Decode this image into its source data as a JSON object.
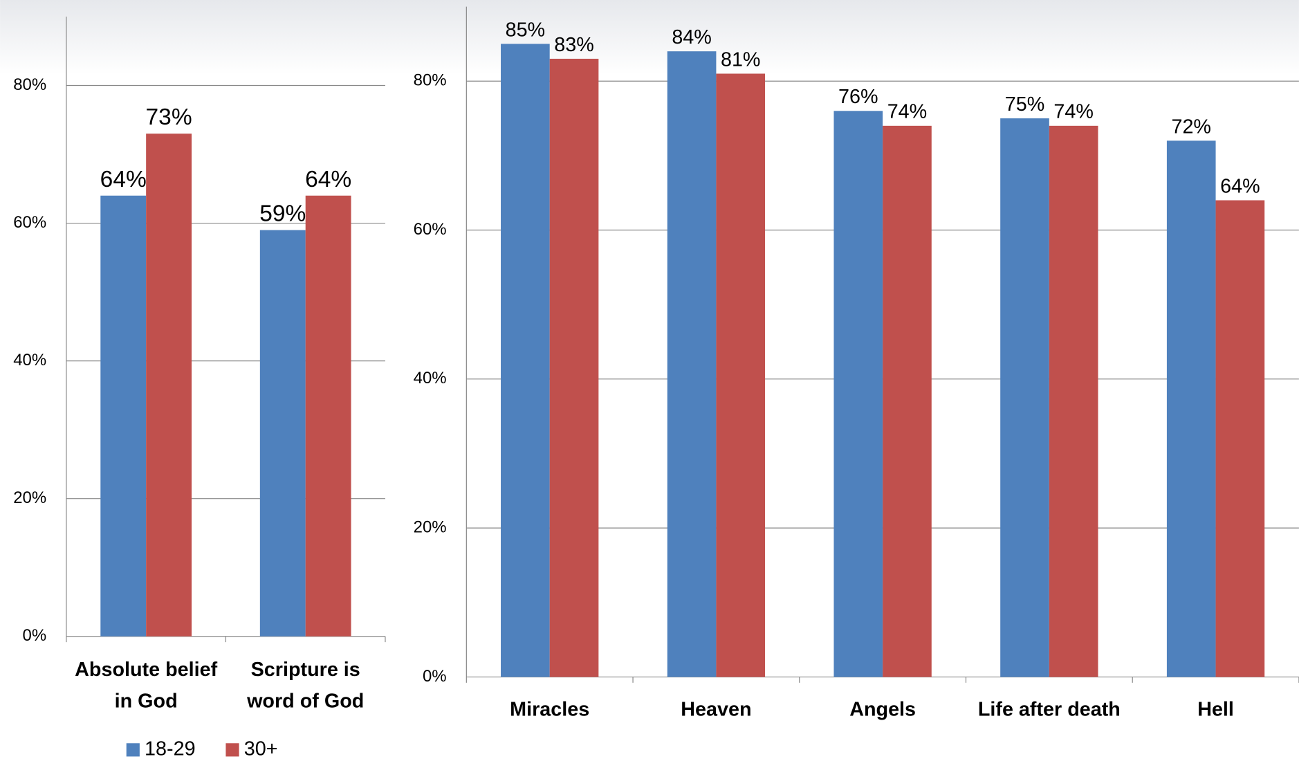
{
  "chart_data": [
    {
      "type": "bar",
      "categories": [
        "Absolute belief in God",
        "Scripture is word of God"
      ],
      "series": [
        {
          "name": "18-29",
          "color": "#4f81bd",
          "values": [
            64,
            59
          ],
          "value_labels": [
            "64%",
            "59%"
          ]
        },
        {
          "name": "30+",
          "color": "#c0504d",
          "values": [
            73,
            64
          ],
          "value_labels": [
            "73%",
            "64%"
          ]
        }
      ],
      "ylim": [
        0,
        90
      ],
      "yticks": [
        {
          "value": 0,
          "label": "0%"
        },
        {
          "value": 20,
          "label": "20%"
        },
        {
          "value": 40,
          "label": "40%"
        },
        {
          "value": 60,
          "label": "60%"
        },
        {
          "value": 80,
          "label": "80%"
        }
      ],
      "grid": true,
      "legend": "bottom"
    },
    {
      "type": "bar",
      "categories": [
        "Miracles",
        "Heaven",
        "Angels",
        "Life after death",
        "Hell"
      ],
      "series": [
        {
          "name": "18-29",
          "color": "#4f81bd",
          "values": [
            85,
            84,
            76,
            75,
            72
          ],
          "value_labels": [
            "85%",
            "84%",
            "76%",
            "75%",
            "72%"
          ]
        },
        {
          "name": "30+",
          "color": "#c0504d",
          "values": [
            83,
            81,
            74,
            74,
            64
          ],
          "value_labels": [
            "83%",
            "81%",
            "74%",
            "74%",
            "64%"
          ]
        }
      ],
      "ylim": [
        0,
        90
      ],
      "yticks": [
        {
          "value": 0,
          "label": "0%"
        },
        {
          "value": 20,
          "label": "20%"
        },
        {
          "value": 40,
          "label": "40%"
        },
        {
          "value": 60,
          "label": "60%"
        },
        {
          "value": 80,
          "label": "80%"
        }
      ],
      "grid": true
    }
  ]
}
